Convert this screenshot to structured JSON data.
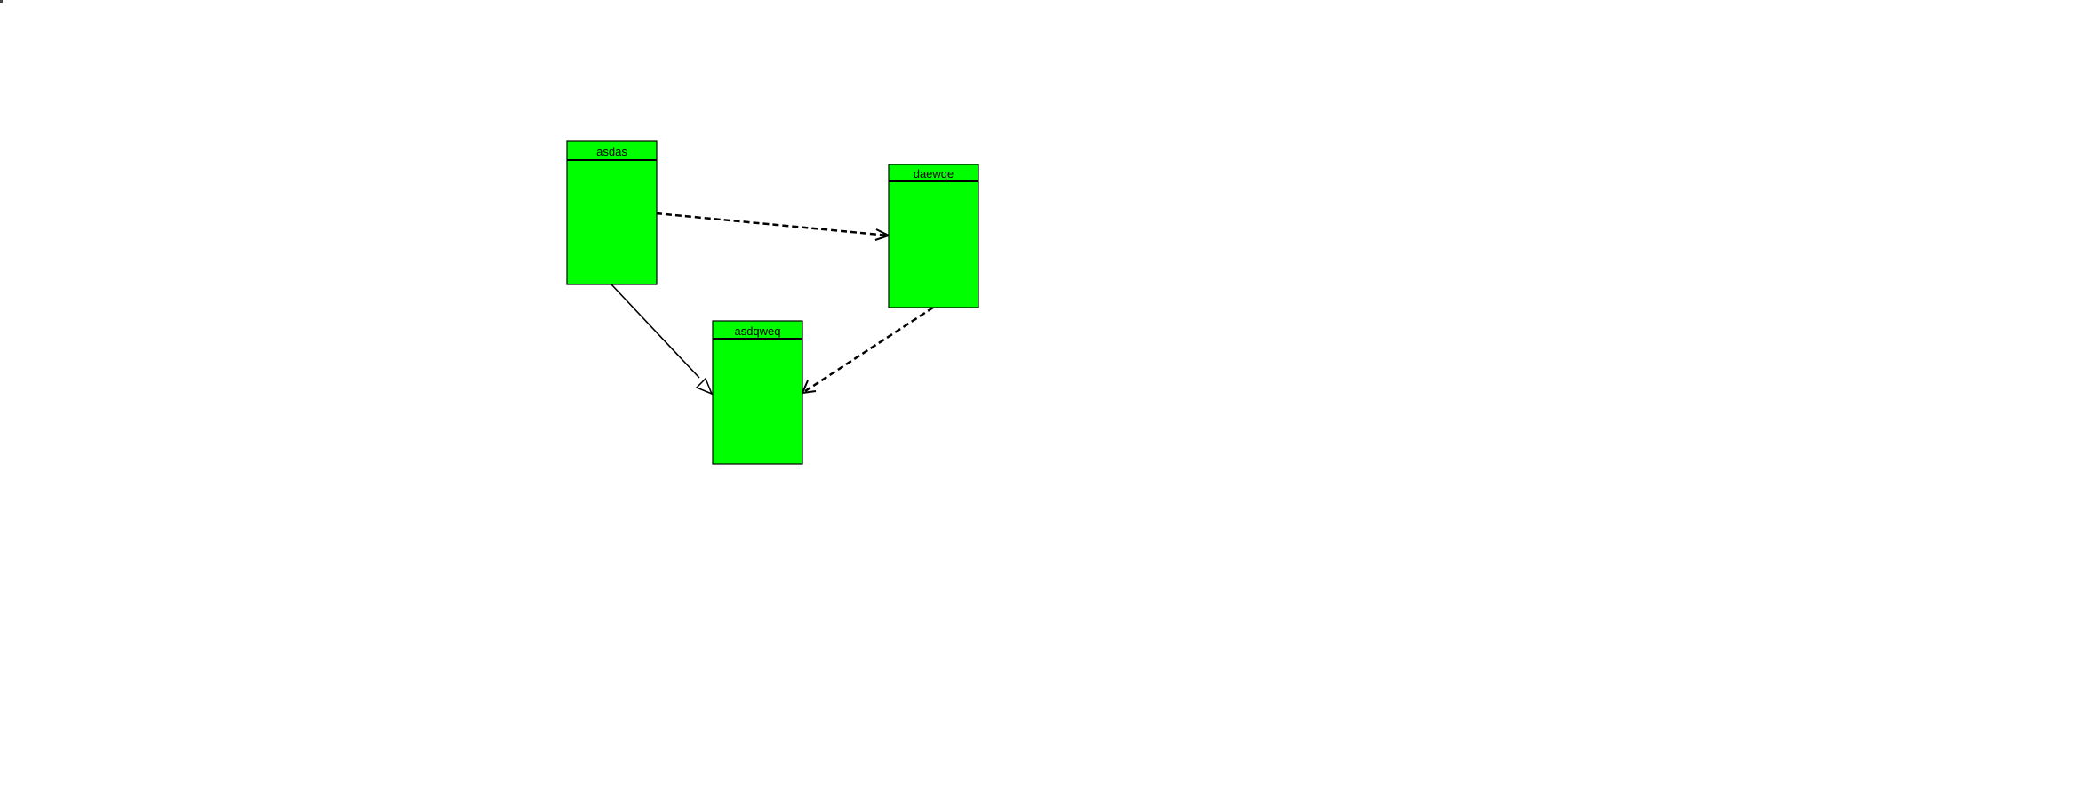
{
  "colors": {
    "class_fill": "#00ff00",
    "class_stroke": "#000000",
    "edge_stroke": "#000000",
    "background": "#ffffff"
  },
  "classes": [
    {
      "id": "asdas",
      "title": "asdas"
    },
    {
      "id": "daewqe",
      "title": "daewqe"
    },
    {
      "id": "asdqweq",
      "title": "asdqweq"
    }
  ],
  "relations": [
    {
      "from": "asdas",
      "to": "daewqe",
      "style": "dashed",
      "head": "open-arrow"
    },
    {
      "from": "asdas",
      "to": "asdqweq",
      "style": "solid",
      "head": "hollow-triangle"
    },
    {
      "from": "daewqe",
      "to": "asdqweq",
      "style": "dashed",
      "head": "open-arrow"
    }
  ]
}
